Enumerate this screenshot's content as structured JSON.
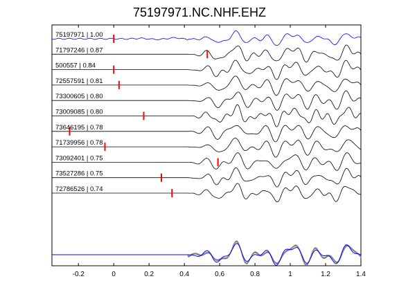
{
  "chart_data": {
    "type": "line",
    "title": "75197971.NC.NHF.EHZ",
    "xlabel": "",
    "ylabel": "",
    "xlim": [
      -0.35,
      1.4
    ],
    "xticks": [
      -0.2,
      0,
      0.2,
      0.4,
      0.6,
      0.8,
      1,
      1.2,
      1.4
    ],
    "xtick_labels": [
      "-0.2",
      "0",
      "0.2",
      "0.4",
      "0.6",
      "0.8",
      "1",
      "1.2",
      "1.4"
    ],
    "grid": false,
    "colors": {
      "reference": "#0000ff",
      "trace": "#000000",
      "pick": "#ff0000",
      "stack": "#808080"
    },
    "traces": [
      {
        "label": "75197971 | 1.00",
        "pick_time": 0.0,
        "reference": true
      },
      {
        "label": "71797246 | 0.87",
        "pick_time": 0.53
      },
      {
        "label": "500557 | 0.84",
        "pick_time": 0.0
      },
      {
        "label": "72557591 | 0.81",
        "pick_time": 0.03
      },
      {
        "label": "73300605 | 0.80",
        "pick_time": null
      },
      {
        "label": "73009085 | 0.80",
        "pick_time": 0.17
      },
      {
        "label": "73646195 | 0.78",
        "pick_time": -0.25
      },
      {
        "label": "71739956 | 0.78",
        "pick_time": -0.05
      },
      {
        "label": "73092401 | 0.75",
        "pick_time": 0.59
      },
      {
        "label": "73527286 | 0.75",
        "pick_time": 0.27
      },
      {
        "label": "72786526 | 0.74",
        "pick_time": 0.33
      }
    ],
    "stack": {
      "overlay_count": 11
    }
  }
}
